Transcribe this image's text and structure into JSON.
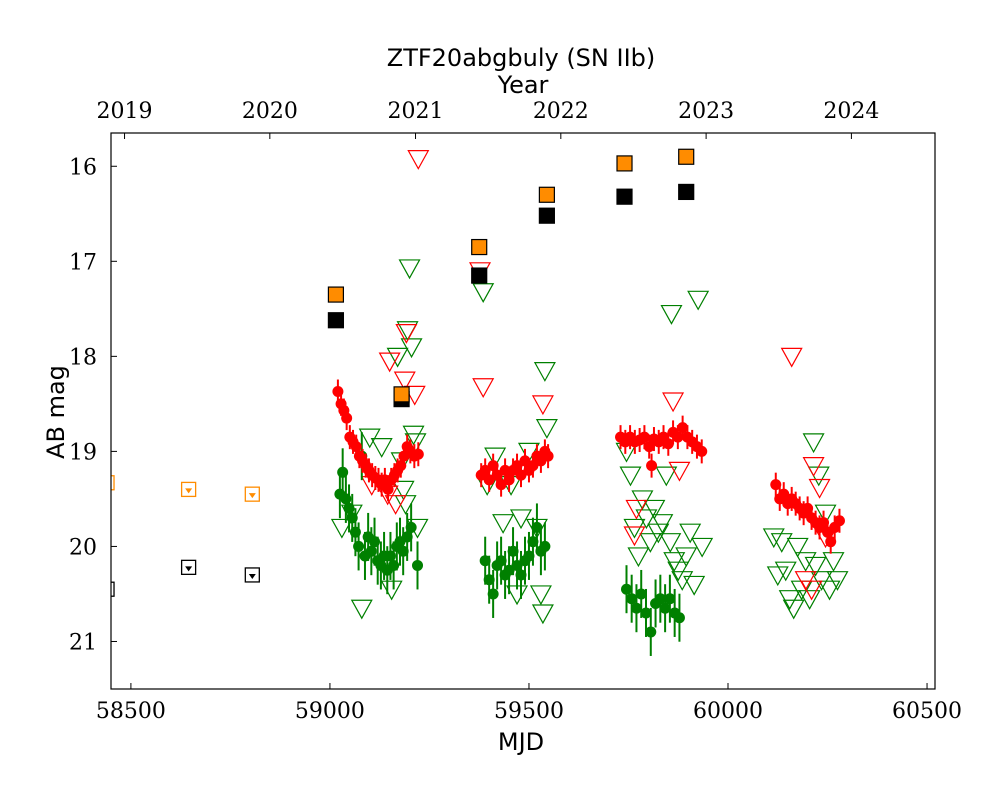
{
  "chart_data": {
    "type": "scatter",
    "title": "ZTF20abgbuly (SN IIb)",
    "xlabel": "MJD",
    "ylabel": "AB mag",
    "top_xlabel": "Year",
    "xlim": [
      58450,
      60520
    ],
    "ylim": [
      21.5,
      15.65
    ],
    "y_inverted": true,
    "xticks": [
      58500,
      59000,
      59500,
      60000,
      60500
    ],
    "yticks": [
      16,
      17,
      18,
      19,
      20,
      21
    ],
    "year_ticks": [
      {
        "label": "2019",
        "mjd": 58484
      },
      {
        "label": "2020",
        "mjd": 58849
      },
      {
        "label": "2021",
        "mjd": 59215
      },
      {
        "label": "2022",
        "mjd": 59580
      },
      {
        "label": "2023",
        "mjd": 59945
      },
      {
        "label": "2024",
        "mjd": 60310
      }
    ],
    "colors": {
      "orange": "#ff8c00",
      "black": "#000000",
      "red": "#ff0000",
      "green": "#008000"
    },
    "series": [
      {
        "name": "orange-squares",
        "marker": "square",
        "color": "#ff8c00",
        "points": [
          [
            59015,
            17.35
          ],
          [
            59180,
            18.4
          ],
          [
            59375,
            16.85
          ],
          [
            59545,
            16.3
          ],
          [
            59740,
            15.97
          ],
          [
            59895,
            15.9
          ]
        ]
      },
      {
        "name": "black-squares",
        "marker": "square",
        "color": "#000000",
        "points": [
          [
            59015,
            17.62
          ],
          [
            59180,
            18.45
          ],
          [
            59375,
            17.15
          ],
          [
            59545,
            16.52
          ],
          [
            59740,
            16.32
          ],
          [
            59895,
            16.27
          ]
        ]
      },
      {
        "name": "orange-upper-limits",
        "marker": "limit-box",
        "color": "#ff8c00",
        "points": [
          [
            58440,
            19.33
          ],
          [
            58645,
            19.4
          ],
          [
            58805,
            19.45
          ]
        ]
      },
      {
        "name": "black-upper-limits",
        "marker": "limit-box",
        "color": "#000000",
        "points": [
          [
            58440,
            20.45
          ],
          [
            58645,
            20.22
          ],
          [
            58805,
            20.3
          ]
        ]
      },
      {
        "name": "red-detections",
        "marker": "circle",
        "color": "#ff0000",
        "points": [
          [
            59020,
            18.37
          ],
          [
            59028,
            18.5
          ],
          [
            59035,
            18.57
          ],
          [
            59042,
            18.65
          ],
          [
            59050,
            18.85
          ],
          [
            59058,
            18.9
          ],
          [
            59066,
            18.95
          ],
          [
            59074,
            19.05
          ],
          [
            59082,
            19.1
          ],
          [
            59090,
            19.15
          ],
          [
            59098,
            19.2
          ],
          [
            59106,
            19.25
          ],
          [
            59114,
            19.28
          ],
          [
            59122,
            19.3
          ],
          [
            59130,
            19.35
          ],
          [
            59138,
            19.3
          ],
          [
            59146,
            19.4
          ],
          [
            59154,
            19.3
          ],
          [
            59162,
            19.25
          ],
          [
            59170,
            19.2
          ],
          [
            59178,
            19.15
          ],
          [
            59186,
            19.05
          ],
          [
            59194,
            18.95
          ],
          [
            59202,
            19.0
          ],
          [
            59212,
            19.05
          ],
          [
            59222,
            19.03
          ],
          [
            59380,
            19.25
          ],
          [
            59390,
            19.2
          ],
          [
            59400,
            19.3
          ],
          [
            59410,
            19.15
          ],
          [
            59420,
            19.25
          ],
          [
            59430,
            19.35
          ],
          [
            59440,
            19.2
          ],
          [
            59450,
            19.3
          ],
          [
            59460,
            19.2
          ],
          [
            59470,
            19.15
          ],
          [
            59480,
            19.25
          ],
          [
            59490,
            19.1
          ],
          [
            59500,
            19.2
          ],
          [
            59510,
            19.15
          ],
          [
            59520,
            19.05
          ],
          [
            59530,
            19.1
          ],
          [
            59540,
            19.0
          ],
          [
            59548,
            19.05
          ],
          [
            59730,
            18.85
          ],
          [
            59742,
            18.9
          ],
          [
            59754,
            18.85
          ],
          [
            59766,
            18.9
          ],
          [
            59778,
            18.88
          ],
          [
            59790,
            18.85
          ],
          [
            59802,
            18.95
          ],
          [
            59814,
            18.87
          ],
          [
            59826,
            18.9
          ],
          [
            59838,
            18.85
          ],
          [
            59850,
            18.92
          ],
          [
            59862,
            18.8
          ],
          [
            59874,
            18.85
          ],
          [
            59886,
            18.75
          ],
          [
            59898,
            18.85
          ],
          [
            59910,
            18.9
          ],
          [
            59922,
            18.95
          ],
          [
            59934,
            19.0
          ],
          [
            59808,
            19.15
          ],
          [
            60120,
            19.35
          ],
          [
            60130,
            19.5
          ],
          [
            60140,
            19.45
          ],
          [
            60150,
            19.55
          ],
          [
            60160,
            19.5
          ],
          [
            60170,
            19.55
          ],
          [
            60180,
            19.6
          ],
          [
            60190,
            19.65
          ],
          [
            60200,
            19.6
          ],
          [
            60210,
            19.7
          ],
          [
            60220,
            19.75
          ],
          [
            60230,
            19.8
          ],
          [
            60240,
            19.75
          ],
          [
            60250,
            19.85
          ],
          [
            60258,
            19.95
          ],
          [
            60268,
            19.8
          ],
          [
            60280,
            19.73
          ]
        ]
      },
      {
        "name": "green-detections",
        "marker": "circle",
        "color": "#008000",
        "points": [
          [
            59025,
            19.45
          ],
          [
            59032,
            19.22
          ],
          [
            59040,
            19.5
          ],
          [
            59048,
            19.6
          ],
          [
            59056,
            19.7
          ],
          [
            59064,
            19.85
          ],
          [
            59072,
            20.0
          ],
          [
            59080,
            19.05
          ],
          [
            59088,
            20.1
          ],
          [
            59096,
            19.9
          ],
          [
            59104,
            20.05
          ],
          [
            59112,
            19.95
          ],
          [
            59120,
            20.15
          ],
          [
            59128,
            20.2
          ],
          [
            59136,
            20.1
          ],
          [
            59144,
            20.25
          ],
          [
            59152,
            20.1
          ],
          [
            59160,
            20.2
          ],
          [
            59168,
            20.0
          ],
          [
            59176,
            19.95
          ],
          [
            59184,
            20.05
          ],
          [
            59194,
            19.9
          ],
          [
            59204,
            19.8
          ],
          [
            59220,
            20.2
          ],
          [
            59390,
            20.15
          ],
          [
            59400,
            20.35
          ],
          [
            59410,
            20.5
          ],
          [
            59420,
            20.2
          ],
          [
            59430,
            20.15
          ],
          [
            59440,
            20.3
          ],
          [
            59450,
            20.25
          ],
          [
            59460,
            20.05
          ],
          [
            59470,
            20.2
          ],
          [
            59480,
            20.3
          ],
          [
            59490,
            20.15
          ],
          [
            59500,
            20.1
          ],
          [
            59510,
            19.95
          ],
          [
            59520,
            19.8
          ],
          [
            59530,
            20.05
          ],
          [
            59540,
            20.0
          ],
          [
            59745,
            20.45
          ],
          [
            59758,
            20.55
          ],
          [
            59770,
            20.65
          ],
          [
            59782,
            20.5
          ],
          [
            59794,
            20.7
          ],
          [
            59806,
            20.9
          ],
          [
            59818,
            20.6
          ],
          [
            59830,
            20.55
          ],
          [
            59842,
            20.65
          ],
          [
            59854,
            20.55
          ],
          [
            59866,
            20.7
          ],
          [
            59878,
            20.75
          ]
        ]
      },
      {
        "name": "red-upper-limits",
        "marker": "open-triangle-down",
        "color": "#ff0000",
        "points": [
          [
            59222,
            15.92
          ],
          [
            59150,
            18.05
          ],
          [
            59192,
            17.75
          ],
          [
            59188,
            18.25
          ],
          [
            59213,
            18.4
          ],
          [
            59105,
            19.35
          ],
          [
            59145,
            19.45
          ],
          [
            59165,
            19.55
          ],
          [
            59377,
            17.1
          ],
          [
            59385,
            18.32
          ],
          [
            59535,
            18.5
          ],
          [
            59770,
            19.6
          ],
          [
            59765,
            19.88
          ],
          [
            59862,
            18.47
          ],
          [
            59878,
            19.2
          ],
          [
            60160,
            18.0
          ],
          [
            60215,
            19.15
          ],
          [
            60230,
            19.38
          ],
          [
            60195,
            20.35
          ],
          [
            60210,
            20.45
          ],
          [
            60245,
            19.9
          ]
        ]
      },
      {
        "name": "green-upper-limits",
        "marker": "open-triangle-down",
        "color": "#008000",
        "points": [
          [
            59030,
            19.8
          ],
          [
            59055,
            19.65
          ],
          [
            59080,
            20.65
          ],
          [
            59100,
            18.85
          ],
          [
            59130,
            18.95
          ],
          [
            59155,
            20.45
          ],
          [
            59170,
            18.0
          ],
          [
            59180,
            19.1
          ],
          [
            59185,
            19.4
          ],
          [
            59190,
            19.55
          ],
          [
            59195,
            17.72
          ],
          [
            59200,
            17.07
          ],
          [
            59205,
            17.9
          ],
          [
            59210,
            18.82
          ],
          [
            59215,
            18.9
          ],
          [
            59220,
            19.8
          ],
          [
            59385,
            17.32
          ],
          [
            59395,
            19.35
          ],
          [
            59415,
            19.05
          ],
          [
            59435,
            19.75
          ],
          [
            59455,
            19.35
          ],
          [
            59470,
            20.5
          ],
          [
            59480,
            19.7
          ],
          [
            59500,
            19.0
          ],
          [
            59520,
            19.8
          ],
          [
            59530,
            20.5
          ],
          [
            59535,
            20.7
          ],
          [
            59540,
            18.15
          ],
          [
            59545,
            18.75
          ],
          [
            59745,
            19.0
          ],
          [
            59755,
            19.25
          ],
          [
            59765,
            19.8
          ],
          [
            59775,
            20.1
          ],
          [
            59785,
            19.5
          ],
          [
            59795,
            19.7
          ],
          [
            59805,
            19.95
          ],
          [
            59815,
            19.6
          ],
          [
            59825,
            19.85
          ],
          [
            59835,
            19.75
          ],
          [
            59845,
            19.25
          ],
          [
            59855,
            19.95
          ],
          [
            59858,
            17.55
          ],
          [
            59865,
            20.15
          ],
          [
            59875,
            20.25
          ],
          [
            59885,
            20.35
          ],
          [
            59895,
            20.1
          ],
          [
            59905,
            19.85
          ],
          [
            59915,
            20.4
          ],
          [
            59925,
            17.4
          ],
          [
            59935,
            20.0
          ],
          [
            60115,
            19.9
          ],
          [
            60125,
            20.3
          ],
          [
            60135,
            19.95
          ],
          [
            60145,
            20.25
          ],
          [
            60155,
            20.55
          ],
          [
            60165,
            20.65
          ],
          [
            60175,
            20.0
          ],
          [
            60185,
            20.45
          ],
          [
            60195,
            20.15
          ],
          [
            60205,
            20.55
          ],
          [
            60215,
            18.9
          ],
          [
            60220,
            20.2
          ],
          [
            60228,
            19.25
          ],
          [
            60235,
            20.35
          ],
          [
            60245,
            19.65
          ],
          [
            60255,
            20.45
          ],
          [
            60265,
            20.15
          ],
          [
            60275,
            20.35
          ]
        ]
      }
    ]
  }
}
